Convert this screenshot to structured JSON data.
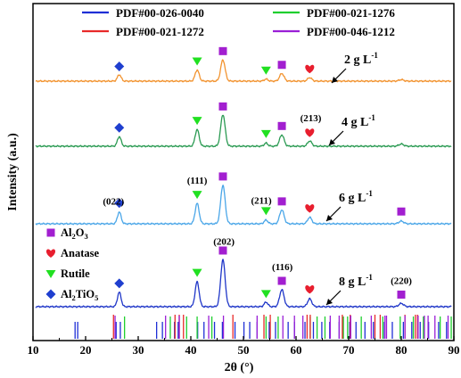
{
  "chart_data": {
    "type": "line",
    "xlabel": "2θ (°)",
    "ylabel": "Intensity (a.u.)",
    "xlim": [
      10,
      90
    ],
    "xticks": [
      "10",
      "20",
      "30",
      "40",
      "50",
      "60",
      "70",
      "80",
      "90"
    ],
    "colors": {
      "pdf_026_0040": "#1f2fd6",
      "pdf_021_1276": "#1fcf2f",
      "pdf_021_1272": "#e82a2a",
      "pdf_046_1212": "#9a1fd6",
      "rutile": "#21e021",
      "anatase": "#e81e2e",
      "al2o3": "#a21fd0",
      "al2tio5": "#1f3fcf"
    },
    "legend": [
      {
        "key": "pdf_026_0040",
        "label": "PDF#00-026-0040"
      },
      {
        "key": "pdf_021_1276",
        "label": "PDF#00-021-1276"
      },
      {
        "key": "pdf_021_1272",
        "label": "PDF#00-021-1272"
      },
      {
        "key": "pdf_046_1212",
        "label": "PDF#00-046-1212"
      }
    ],
    "series": [
      {
        "concentration": "2 g L",
        "superscript": "-1",
        "color": "#f2932f",
        "intensity_scale": 0.55,
        "markers": [
          {
            "x": 26.4,
            "phase": "al2tio5"
          },
          {
            "x": 41.2,
            "phase": "rutile"
          },
          {
            "x": 46.1,
            "phase": "al2o3"
          },
          {
            "x": 54.3,
            "phase": "rutile"
          },
          {
            "x": 57.3,
            "phase": "al2o3"
          },
          {
            "x": 62.6,
            "phase": "anatase"
          }
        ],
        "hkl": []
      },
      {
        "concentration": "4 g L",
        "superscript": "-1",
        "color": "#2a9a52",
        "intensity_scale": 0.82,
        "markers": [
          {
            "x": 26.4,
            "phase": "al2tio5"
          },
          {
            "x": 41.2,
            "phase": "rutile"
          },
          {
            "x": 46.1,
            "phase": "al2o3"
          },
          {
            "x": 54.3,
            "phase": "rutile"
          },
          {
            "x": 57.3,
            "phase": "al2o3"
          },
          {
            "x": 62.6,
            "phase": "anatase"
          }
        ],
        "hkl": [
          {
            "x": 62.8,
            "text": "(213)"
          }
        ]
      },
      {
        "concentration": "6 g L",
        "superscript": "-1",
        "color": "#4aa6e8",
        "intensity_scale": 1.0,
        "markers": [
          {
            "x": 26.4,
            "phase": "al2tio5"
          },
          {
            "x": 41.2,
            "phase": "rutile"
          },
          {
            "x": 46.1,
            "phase": "al2o3"
          },
          {
            "x": 54.3,
            "phase": "rutile"
          },
          {
            "x": 57.3,
            "phase": "al2o3"
          },
          {
            "x": 62.6,
            "phase": "anatase"
          },
          {
            "x": 80.0,
            "phase": "al2o3"
          }
        ],
        "hkl": [
          {
            "x": 25.3,
            "text": "(022)"
          },
          {
            "x": 41.2,
            "text": "(111)"
          },
          {
            "x": 53.4,
            "text": "(211)"
          }
        ]
      },
      {
        "concentration": "8 g L",
        "superscript": "-1",
        "color": "#1f36c8",
        "intensity_scale": 1.22,
        "markers": [
          {
            "x": 26.4,
            "phase": "al2tio5"
          },
          {
            "x": 41.2,
            "phase": "rutile"
          },
          {
            "x": 46.1,
            "phase": "al2o3"
          },
          {
            "x": 54.3,
            "phase": "rutile"
          },
          {
            "x": 57.3,
            "phase": "al2o3"
          },
          {
            "x": 62.6,
            "phase": "anatase"
          },
          {
            "x": 80.0,
            "phase": "al2o3"
          }
        ],
        "hkl": [
          {
            "x": 46.3,
            "text": "(202)"
          },
          {
            "x": 57.4,
            "text": "(116)"
          },
          {
            "x": 80.0,
            "text": "(220)"
          }
        ]
      }
    ],
    "peaks": [
      {
        "x": 26.4,
        "height": 0.22,
        "width": 0.35
      },
      {
        "x": 41.2,
        "height": 0.38,
        "width": 0.38
      },
      {
        "x": 46.1,
        "height": 0.72,
        "width": 0.42
      },
      {
        "x": 54.3,
        "height": 0.07,
        "width": 0.35
      },
      {
        "x": 57.3,
        "height": 0.26,
        "width": 0.42
      },
      {
        "x": 62.6,
        "height": 0.12,
        "width": 0.4
      },
      {
        "x": 80.0,
        "height": 0.05,
        "width": 0.45
      }
    ],
    "phase_legend": [
      {
        "phase": "al2o3",
        "text": "Al",
        "sub": "2",
        "text2": "O",
        "sub2": "3"
      },
      {
        "phase": "anatase",
        "text": "Anatase"
      },
      {
        "phase": "rutile",
        "text": "Rutile"
      },
      {
        "phase": "al2tio5",
        "text": "Al",
        "sub": "2",
        "text2": "TiO",
        "sub2": "5"
      }
    ],
    "reference_lines": {
      "pdf_026_0040": [
        18.0,
        18.5,
        25.8,
        26.6,
        33.5,
        34.6,
        36.9,
        37.6,
        41.3,
        42.5,
        44.5,
        46.0,
        48.4,
        50.1,
        51.2,
        52.6,
        54.9,
        56.1,
        58.5,
        59.7,
        61.7,
        63.3,
        64.9,
        66.4,
        68.2,
        70.2,
        71.4,
        73.1,
        74.7,
        76.6,
        78.3,
        80.4,
        82.0,
        83.6,
        85.2,
        87.1,
        88.6
      ],
      "pdf_021_1276": [
        27.4,
        36.1,
        39.2,
        41.2,
        44.0,
        54.3,
        56.6,
        62.7,
        64.0,
        65.5,
        69.0,
        69.8,
        72.4,
        76.5,
        79.8,
        82.3,
        84.2,
        87.4,
        89.5
      ],
      "pdf_021_1272": [
        25.3,
        37.0,
        37.8,
        38.6,
        48.0,
        53.9,
        55.1,
        62.1,
        62.7,
        68.8,
        70.3,
        75.0,
        76.0,
        80.7,
        82.7,
        83.1
      ],
      "pdf_046_1212": [
        25.6,
        35.2,
        37.8,
        43.4,
        46.2,
        52.6,
        57.5,
        59.7,
        61.3,
        66.5,
        68.2,
        70.4,
        74.3,
        76.9,
        77.2,
        80.7,
        83.2,
        84.4,
        85.1,
        86.4,
        88.9
      ]
    }
  }
}
